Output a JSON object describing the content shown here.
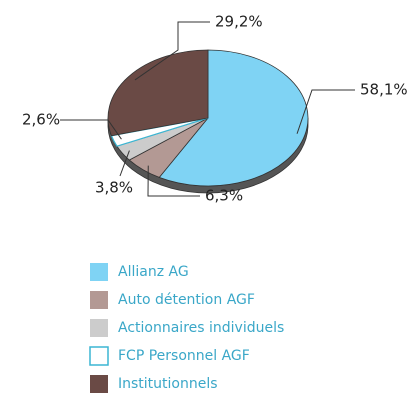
{
  "chart_data": {
    "type": "pie",
    "categories": [
      "Allianz AG",
      "Auto détention AGF",
      "Actionnaires individuels",
      "FCP Personnel AGF",
      "Institutionnels"
    ],
    "values": [
      58.1,
      6.3,
      3.8,
      2.6,
      29.2
    ],
    "value_labels": [
      "58,1%",
      "6,3%",
      "3,8%",
      "2,6%",
      "29,2%"
    ],
    "colors": [
      "#7fd3f4",
      "#b39994",
      "#cccccc",
      "#ffffff",
      "#6a4a45"
    ],
    "legend": "bottom"
  }
}
